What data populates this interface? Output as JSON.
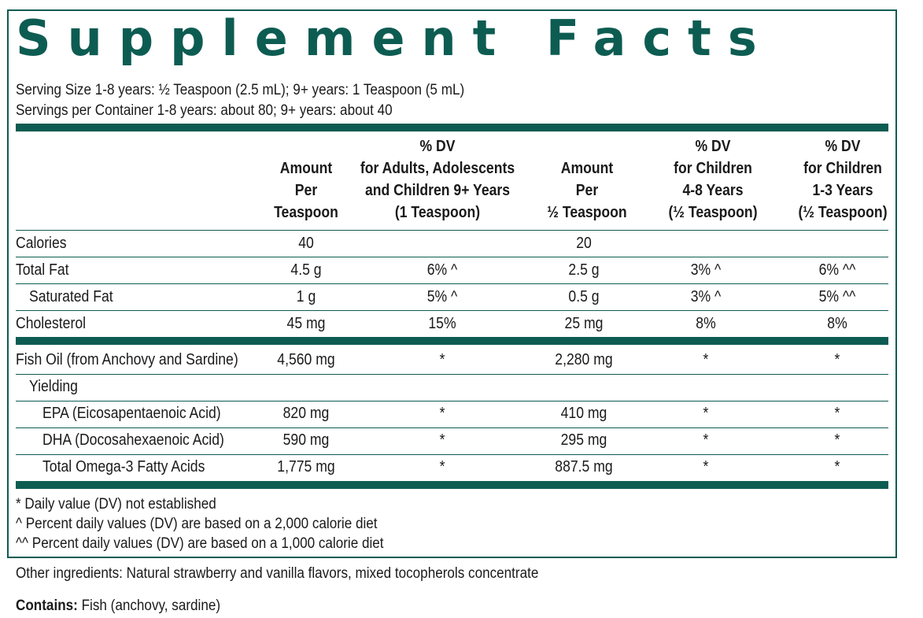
{
  "title": "Supplement Facts",
  "serving_size": "Serving Size 1-8 years: ½ Teaspoon (2.5 mL); 9+ years: 1 Teaspoon (5 mL)",
  "servings_per_container": "Servings per Container 1-8 years: about 80; 9+ years: about 40",
  "headers": {
    "amount_tsp": [
      "Amount",
      "Per",
      "Teaspoon"
    ],
    "dv_adults": [
      "% DV",
      "for Adults, Adolescents",
      "and Children 9+ Years",
      "(1 Teaspoon)"
    ],
    "amount_half": [
      "Amount",
      "Per",
      "½ Teaspoon"
    ],
    "dv_4_8": [
      "% DV",
      "for Children",
      "4-8 Years",
      "(½ Teaspoon)"
    ],
    "dv_1_3": [
      "% DV",
      "for Children",
      "1-3 Years",
      "(½ Teaspoon)"
    ]
  },
  "rows": [
    {
      "label": "Calories",
      "amt1": "40",
      "dv1": "",
      "amt2": "20",
      "dv2": "",
      "dv3": ""
    },
    {
      "label": "Total Fat",
      "amt1": "4.5 g",
      "dv1": "6% ^",
      "amt2": "2.5 g",
      "dv2": "3% ^",
      "dv3": "6% ^^"
    },
    {
      "label": "Saturated Fat",
      "amt1": "1 g",
      "dv1": "5% ^",
      "amt2": "0.5 g",
      "dv2": "3% ^",
      "dv3": "5% ^^"
    },
    {
      "label": "Cholesterol",
      "amt1": "45 mg",
      "dv1": "15%",
      "amt2": "25 mg",
      "dv2": "8%",
      "dv3": "8%"
    },
    {
      "label": "Fish Oil (from Anchovy and Sardine)",
      "amt1": "4,560 mg",
      "dv1": "*",
      "amt2": "2,280 mg",
      "dv2": "*",
      "dv3": "*"
    },
    {
      "label": "Yielding",
      "amt1": "",
      "dv1": "",
      "amt2": "",
      "dv2": "",
      "dv3": ""
    },
    {
      "label": "EPA (Eicosapentaenoic Acid)",
      "amt1": "820 mg",
      "dv1": "*",
      "amt2": "410 mg",
      "dv2": "*",
      "dv3": "*"
    },
    {
      "label": "DHA (Docosahexaenoic Acid)",
      "amt1": "590 mg",
      "dv1": "*",
      "amt2": "295 mg",
      "dv2": "*",
      "dv3": "*"
    },
    {
      "label": "Total Omega-3 Fatty Acids",
      "amt1": "1,775 mg",
      "dv1": "*",
      "amt2": "887.5 mg",
      "dv2": "*",
      "dv3": "*"
    }
  ],
  "footnotes": [
    "* Daily value (DV) not established",
    "^ Percent daily values (DV) are based on a 2,000 calorie diet",
    "^^ Percent daily values (DV) are based on a 1,000 calorie diet"
  ],
  "other_ingredients": "Other ingredients: Natural strawberry and vanilla flavors, mixed tocopherols concentrate",
  "contains_label": "Contains:",
  "contains_value": "Fish (anchovy, sardine)",
  "colors": {
    "accent": "#0d5c52",
    "text": "#1a1a1a"
  }
}
